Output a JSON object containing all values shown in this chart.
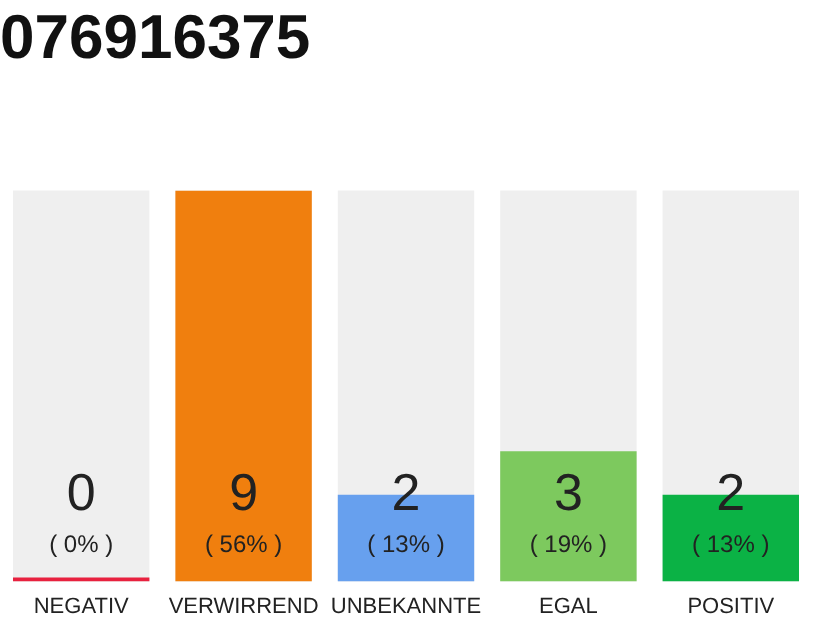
{
  "chart_data": {
    "type": "bar",
    "title": "076916375",
    "categories": [
      "NEGATIV",
      "VERWIRREND",
      "UNBEKANNTE",
      "EGAL",
      "POSITIV"
    ],
    "values": [
      0,
      9,
      2,
      3,
      2
    ],
    "colors": [
      "#e8213f",
      "#f07f0e",
      "#67a0ee",
      "#7dc95e",
      "#0bb245"
    ],
    "ylim": [
      0,
      9
    ],
    "tick_labels": "x",
    "grid": false,
    "legend": false,
    "data_labels": true,
    "annotations": [
      "( 0% )",
      "( 56% )",
      "( 13% )",
      "( 19% )",
      "( 13% )"
    ]
  }
}
